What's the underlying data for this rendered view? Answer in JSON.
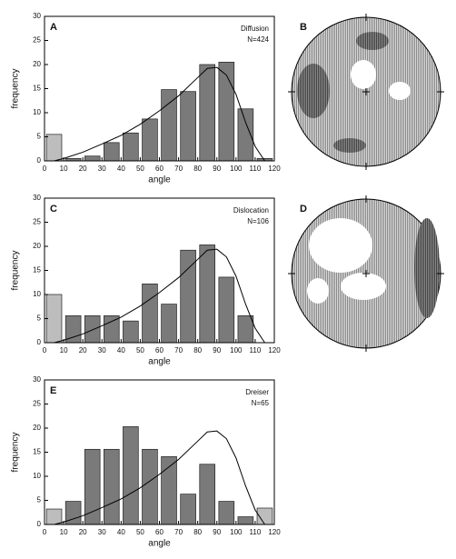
{
  "chart_data": [
    {
      "type": "histogram",
      "panel": "A",
      "annotation": [
        "Diffusion",
        "N=424"
      ],
      "xlabel": "angle",
      "ylabel": "frequency",
      "bins": [
        0,
        10,
        20,
        30,
        40,
        50,
        60,
        70,
        80,
        90,
        100,
        110,
        120
      ],
      "values": [
        5.5,
        0.5,
        1,
        3.8,
        5.8,
        8.7,
        14.8,
        14.4,
        20,
        20.5,
        10.8,
        0.5
      ],
      "bar_colors": [
        "#bdbdbd",
        "#7a7a7a",
        "#7a7a7a",
        "#7a7a7a",
        "#7a7a7a",
        "#7a7a7a",
        "#7a7a7a",
        "#7a7a7a",
        "#7a7a7a",
        "#7a7a7a",
        "#7a7a7a",
        "#7a7a7a"
      ],
      "curve": {
        "x": [
          5,
          10,
          20,
          30,
          40,
          50,
          60,
          70,
          80,
          85,
          90,
          95,
          100,
          105,
          110,
          115
        ],
        "values": [
          0,
          0.5,
          1.8,
          3.5,
          5.3,
          7.6,
          10.4,
          13.5,
          17.3,
          19.2,
          19.4,
          17.8,
          13.8,
          8,
          3,
          0
        ],
        "color": "#000000"
      },
      "xlim": [
        0,
        120
      ],
      "xticks": [
        0,
        10,
        20,
        30,
        40,
        50,
        60,
        70,
        80,
        90,
        100,
        110,
        120
      ],
      "ylim": [
        0,
        30
      ],
      "yticks": [
        0,
        5,
        10,
        15,
        20,
        25,
        30
      ]
    },
    {
      "type": "histogram",
      "panel": "C",
      "annotation": [
        "Dislocation",
        "N=106"
      ],
      "xlabel": "angle",
      "ylabel": "frequency",
      "bins": [
        0,
        10,
        20,
        30,
        40,
        50,
        60,
        70,
        80,
        90,
        100,
        110,
        120
      ],
      "values": [
        10,
        5.6,
        5.6,
        5.6,
        4.5,
        12.2,
        8,
        19.2,
        20.3,
        13.6,
        5.6,
        0
      ],
      "bar_colors": [
        "#bdbdbd",
        "#7a7a7a",
        "#7a7a7a",
        "#7a7a7a",
        "#7a7a7a",
        "#7a7a7a",
        "#7a7a7a",
        "#7a7a7a",
        "#7a7a7a",
        "#7a7a7a",
        "#7a7a7a",
        "#7a7a7a"
      ],
      "curve": {
        "x": [
          5,
          10,
          20,
          30,
          40,
          50,
          60,
          70,
          80,
          85,
          90,
          95,
          100,
          105,
          110,
          115
        ],
        "values": [
          0,
          0.5,
          1.8,
          3.5,
          5.3,
          7.6,
          10.4,
          13.5,
          17.3,
          19.2,
          19.4,
          17.8,
          13.8,
          8,
          3,
          0
        ],
        "color": "#000000"
      },
      "xlim": [
        0,
        120
      ],
      "xticks": [
        0,
        10,
        20,
        30,
        40,
        50,
        60,
        70,
        80,
        90,
        100,
        110,
        120
      ],
      "ylim": [
        0,
        30
      ],
      "yticks": [
        0,
        5,
        10,
        15,
        20,
        25,
        30
      ]
    },
    {
      "type": "histogram",
      "panel": "E",
      "annotation": [
        "Dreiser",
        "N=65"
      ],
      "xlabel": "angle",
      "ylabel": "frequency",
      "bins": [
        0,
        10,
        20,
        30,
        40,
        50,
        60,
        70,
        80,
        90,
        100,
        110,
        120
      ],
      "values": [
        3.2,
        4.8,
        15.6,
        15.6,
        20.3,
        15.6,
        14.1,
        6.3,
        12.5,
        4.8,
        1.6,
        3.4
      ],
      "bar_colors": [
        "#bdbdbd",
        "#7a7a7a",
        "#7a7a7a",
        "#7a7a7a",
        "#7a7a7a",
        "#7a7a7a",
        "#7a7a7a",
        "#7a7a7a",
        "#7a7a7a",
        "#7a7a7a",
        "#7a7a7a",
        "#bdbdbd"
      ],
      "curve": {
        "x": [
          5,
          10,
          20,
          30,
          40,
          50,
          60,
          70,
          80,
          85,
          90,
          95,
          100,
          105,
          110,
          115
        ],
        "values": [
          0,
          0.5,
          1.8,
          3.5,
          5.3,
          7.6,
          10.4,
          13.5,
          17.3,
          19.2,
          19.4,
          17.8,
          13.8,
          8,
          3,
          0
        ],
        "color": "#000000"
      },
      "xlim": [
        0,
        120
      ],
      "xticks": [
        0,
        10,
        20,
        30,
        40,
        50,
        60,
        70,
        80,
        90,
        100,
        110,
        120
      ],
      "ylim": [
        0,
        30
      ],
      "yticks": [
        0,
        5,
        10,
        15,
        20,
        25,
        30
      ]
    }
  ],
  "stereonets": [
    {
      "label": "B"
    },
    {
      "label": "D"
    }
  ]
}
